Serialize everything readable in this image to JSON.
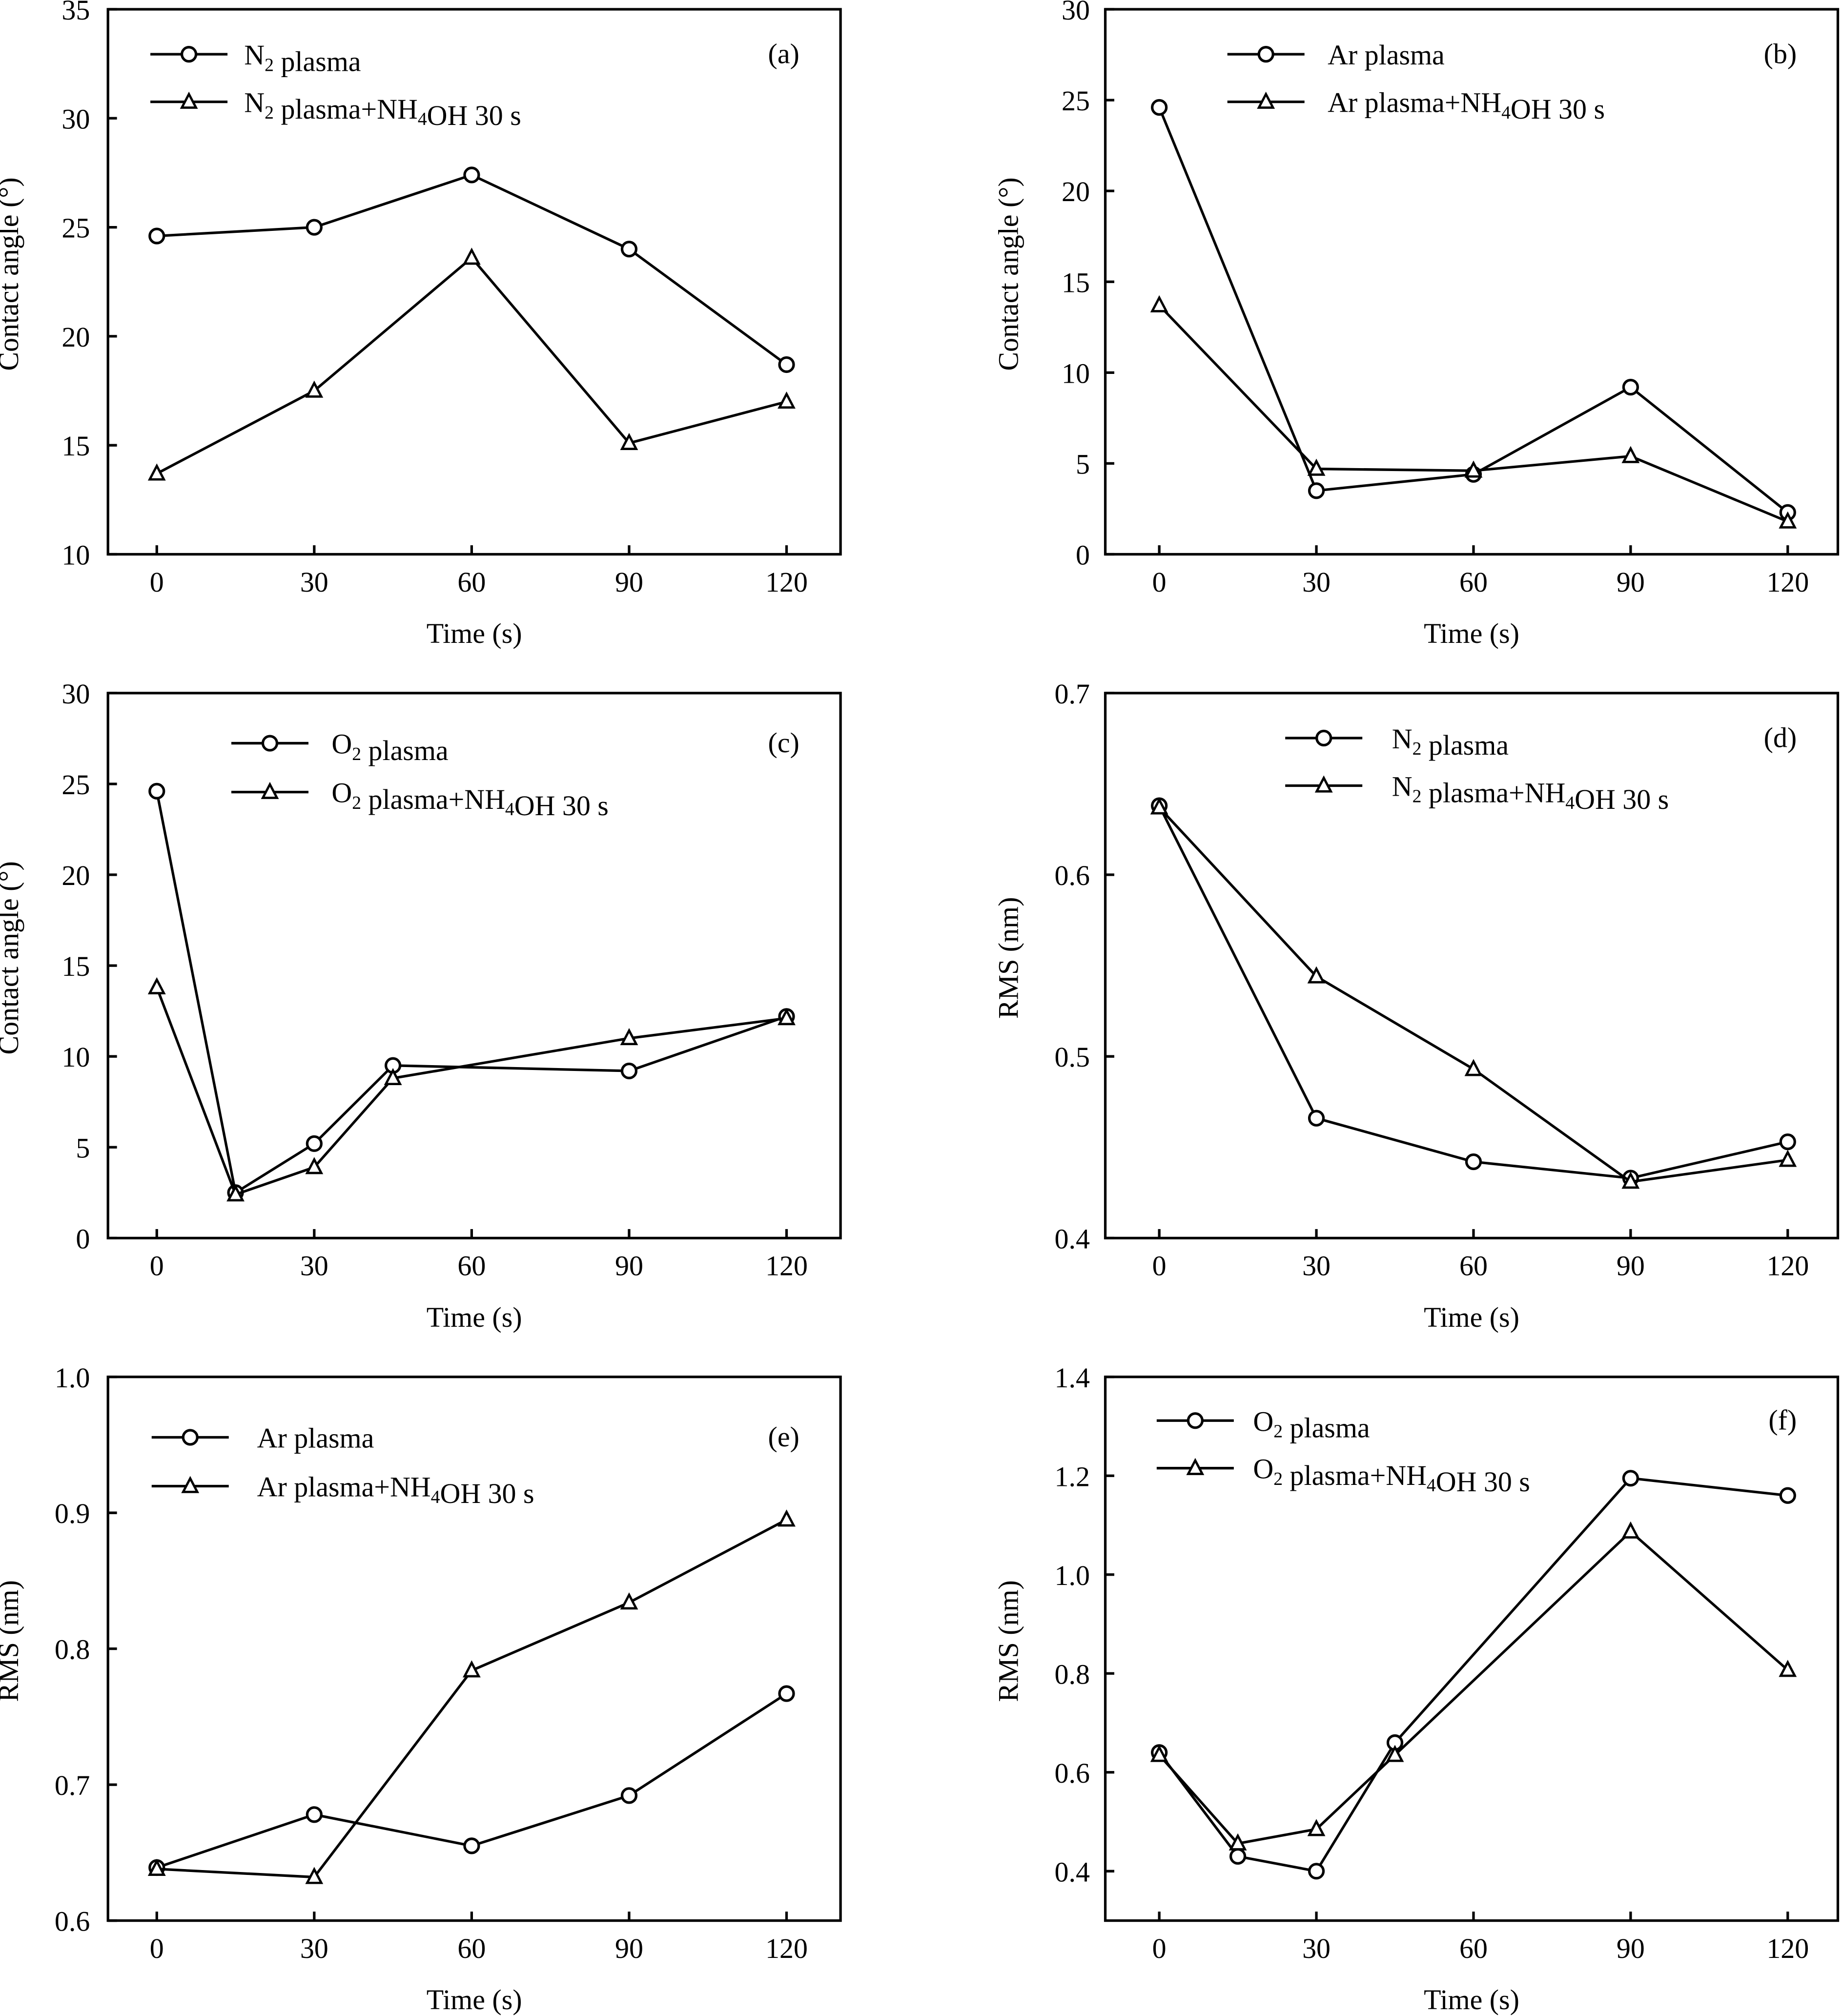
{
  "chart_data": [
    {
      "panel_label": "(a)",
      "type": "line",
      "xlabel": "Time (s)",
      "ylabel": "Contact angle (°)",
      "xlim": [
        -10,
        130
      ],
      "ylim": [
        10,
        35
      ],
      "xticks": [
        0,
        30,
        60,
        90,
        120
      ],
      "yticks": [
        10,
        15,
        20,
        25,
        30,
        35
      ],
      "legend_placement": "top-left",
      "series": [
        {
          "name": [
            {
              "t": "N"
            },
            {
              "t": "2",
              "sub": true
            },
            {
              "t": " plasma"
            }
          ],
          "marker": "circle",
          "x": [
            0,
            30,
            60,
            90,
            120
          ],
          "y": [
            24.6,
            25.0,
            27.4,
            24.0,
            18.7
          ]
        },
        {
          "name": [
            {
              "t": "N"
            },
            {
              "t": "2",
              "sub": true
            },
            {
              "t": " plasma+NH"
            },
            {
              "t": "4",
              "sub": true
            },
            {
              "t": "OH 30 s"
            }
          ],
          "marker": "triangle",
          "x": [
            0,
            30,
            60,
            90,
            120
          ],
          "y": [
            13.7,
            17.5,
            23.6,
            15.1,
            17.0
          ]
        }
      ]
    },
    {
      "panel_label": "(b)",
      "type": "line",
      "xlabel": "Time (s)",
      "ylabel": "Contact angle (°)",
      "xlim": [
        -10,
        130
      ],
      "ylim": [
        0,
        30
      ],
      "xticks": [
        0,
        30,
        60,
        90,
        120
      ],
      "yticks": [
        0,
        5,
        10,
        15,
        20,
        25,
        30
      ],
      "legend_placement": "top-center",
      "series": [
        {
          "name": [
            {
              "t": "Ar plasma"
            }
          ],
          "marker": "circle",
          "x": [
            0,
            30,
            60,
            90,
            120
          ],
          "y": [
            24.6,
            3.5,
            4.4,
            9.2,
            2.3
          ]
        },
        {
          "name": [
            {
              "t": "Ar plasma+NH"
            },
            {
              "t": "4",
              "sub": true
            },
            {
              "t": "OH 30 s"
            }
          ],
          "marker": "triangle",
          "x": [
            0,
            30,
            60,
            90,
            120
          ],
          "y": [
            13.7,
            4.7,
            4.6,
            5.4,
            1.8
          ]
        }
      ]
    },
    {
      "panel_label": "(c)",
      "type": "line",
      "xlabel": "Time (s)",
      "ylabel": "Contact angle (°)",
      "xlim": [
        -10,
        130
      ],
      "ylim": [
        0,
        30
      ],
      "xticks": [
        0,
        30,
        60,
        90,
        120
      ],
      "yticks": [
        0,
        5,
        10,
        15,
        20,
        25,
        30
      ],
      "legend_placement": "top-center",
      "series": [
        {
          "name": [
            {
              "t": "O"
            },
            {
              "t": "2",
              "sub": true
            },
            {
              "t": " plasma"
            }
          ],
          "marker": "circle",
          "x": [
            0,
            15,
            30,
            45,
            90,
            120
          ],
          "y": [
            24.6,
            2.5,
            5.2,
            9.5,
            9.2,
            12.2
          ]
        },
        {
          "name": [
            {
              "t": "O"
            },
            {
              "t": "2",
              "sub": true
            },
            {
              "t": " plasma+NH"
            },
            {
              "t": "4",
              "sub": true
            },
            {
              "t": "OH 30 s"
            }
          ],
          "marker": "triangle",
          "x": [
            0,
            15,
            30,
            45,
            90,
            120
          ],
          "y": [
            13.8,
            2.4,
            3.9,
            8.8,
            11.0,
            12.1
          ]
        }
      ]
    },
    {
      "panel_label": "(d)",
      "type": "line",
      "xlabel": "Time (s)",
      "ylabel": "RMS (nm)",
      "xlim": [
        -10,
        130
      ],
      "ylim": [
        0.4,
        0.7
      ],
      "xticks": [
        0,
        30,
        60,
        90,
        120
      ],
      "yticks": [
        0.4,
        0.5,
        0.6,
        0.7
      ],
      "legend_placement": "top-center",
      "series": [
        {
          "name": [
            {
              "t": "N"
            },
            {
              "t": "2",
              "sub": true
            },
            {
              "t": " plasma"
            }
          ],
          "marker": "circle",
          "x": [
            0,
            30,
            60,
            90,
            120
          ],
          "y": [
            0.638,
            0.466,
            0.442,
            0.433,
            0.453
          ]
        },
        {
          "name": [
            {
              "t": "N"
            },
            {
              "t": "2",
              "sub": true
            },
            {
              "t": " plasma+NH"
            },
            {
              "t": "4",
              "sub": true
            },
            {
              "t": "OH 30 s"
            }
          ],
          "marker": "triangle",
          "x": [
            0,
            30,
            60,
            90,
            120
          ],
          "y": [
            0.637,
            0.544,
            0.493,
            0.431,
            0.443
          ]
        }
      ]
    },
    {
      "panel_label": "(e)",
      "type": "line",
      "xlabel": "Time (s)",
      "ylabel": "RMS (nm)",
      "xlim": [
        -10,
        130
      ],
      "ylim": [
        0.6,
        1.0
      ],
      "xticks": [
        0,
        30,
        60,
        90,
        120
      ],
      "yticks": [
        0.6,
        0.7,
        0.8,
        0.9,
        1.0
      ],
      "ytick_format": 1,
      "legend_placement": "top-left",
      "series": [
        {
          "name": [
            {
              "t": "Ar plasma"
            }
          ],
          "marker": "circle",
          "x": [
            0,
            30,
            60,
            90,
            120
          ],
          "y": [
            0.639,
            0.678,
            0.655,
            0.692,
            0.767
          ]
        },
        {
          "name": [
            {
              "t": "Ar plasma+NH"
            },
            {
              "t": "4",
              "sub": true
            },
            {
              "t": "OH 30 s"
            }
          ],
          "marker": "triangle",
          "x": [
            0,
            30,
            60,
            90,
            120
          ],
          "y": [
            0.638,
            0.632,
            0.784,
            0.834,
            0.895
          ]
        }
      ]
    },
    {
      "panel_label": "(f)",
      "type": "line",
      "xlabel": "Time (s)",
      "ylabel": "RMS (nm)",
      "xlim": [
        -10,
        130
      ],
      "ylim": [
        0.3,
        1.4
      ],
      "xticks": [
        0,
        30,
        60,
        90,
        120
      ],
      "yticks": [
        0.4,
        0.6,
        0.8,
        1.0,
        1.2,
        1.4
      ],
      "ytick_format": 1,
      "legend_placement": "top-left",
      "series": [
        {
          "name": [
            {
              "t": "O"
            },
            {
              "t": "2",
              "sub": true
            },
            {
              "t": " plasma"
            }
          ],
          "marker": "circle",
          "x": [
            0,
            15,
            30,
            45,
            90,
            120
          ],
          "y": [
            0.64,
            0.43,
            0.4,
            0.66,
            1.195,
            1.16
          ]
        },
        {
          "name": [
            {
              "t": "O"
            },
            {
              "t": "2",
              "sub": true
            },
            {
              "t": " plasma+NH"
            },
            {
              "t": "4",
              "sub": true
            },
            {
              "t": "OH 30 s"
            }
          ],
          "marker": "triangle",
          "x": [
            0,
            15,
            30,
            45,
            90,
            120
          ],
          "y": [
            0.635,
            0.456,
            0.485,
            0.635,
            1.087,
            0.807
          ]
        }
      ]
    }
  ]
}
